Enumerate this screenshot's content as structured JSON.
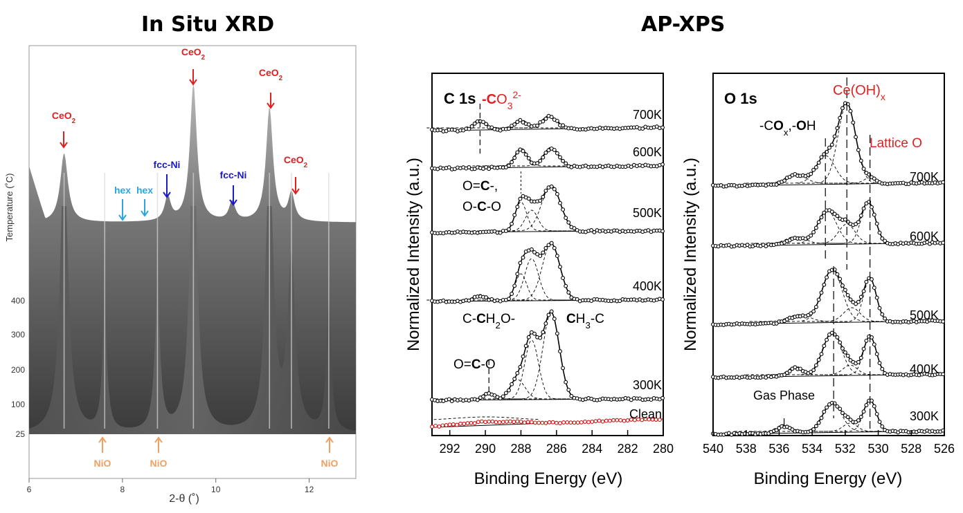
{
  "titles": {
    "xrd": "In Situ XRD",
    "xps": "AP-XPS"
  },
  "chart_data": [
    {
      "type": "area",
      "panel": "xrd",
      "xlabel": "2-θ (˚)",
      "ylabel": "Temperature (˚C)",
      "xlim": [
        6,
        13
      ],
      "xticks": [
        6,
        8,
        10,
        12
      ],
      "yticks": [
        "25",
        "100",
        "200",
        "300",
        "400"
      ],
      "top_peaks": [
        6.75,
        8.97,
        9.52,
        10.35,
        11.15,
        11.62
      ],
      "nio_peaks": [
        7.62,
        8.75,
        12.42
      ],
      "annotations": {
        "ceo2": "CeO",
        "ceo2_sub": "2",
        "fcc_ni": "fcc-Ni",
        "hex": "hex",
        "nio": "NiO"
      },
      "colors": {
        "ceo2": "#e02020",
        "fcc_ni": "#1a1acc",
        "hex": "#2aa6e0",
        "nio": "#f0a060"
      }
    },
    {
      "type": "line",
      "panel": "c1s",
      "title": "C 1s",
      "xlabel": "Binding Energy (eV)",
      "ylabel": "Normalized Intensity (a.u.)",
      "xlim": [
        293,
        280
      ],
      "xticks": [
        292,
        290,
        288,
        286,
        284,
        282,
        280
      ],
      "temperatures": [
        "700K",
        "600K",
        "500K",
        "400K",
        "300K",
        "Clean"
      ],
      "annotations": {
        "co3_a": "-",
        "co3_b": "C",
        "co3_c": "O",
        "co3_sub": "3",
        "co3_sup": "2-",
        "oc_a": "O=",
        "oc_b": "C",
        "oc_c": "-,",
        "oco_a": "O-",
        "oco_b": "C",
        "oco_c": "-O",
        "ch2o_a": "C-",
        "ch2o_b": "C",
        "ch2o_c": "H",
        "ch2o_sub": "2",
        "ch2o_d": "O-",
        "ch3_a": "C",
        "ch3_b": "H",
        "ch3_sub": "3",
        "ch3_c": "-C",
        "oco2_a": "O=",
        "oco2_b": "C",
        "oco2_c": "-O"
      },
      "peaks_eV": [
        290.3,
        288.0,
        287.4,
        286.3
      ]
    },
    {
      "type": "line",
      "panel": "o1s",
      "title": "O 1s",
      "xlabel": "Binding Energy (eV)",
      "ylabel": "Normalized Intensity (a.u.)",
      "xlim": [
        540,
        526
      ],
      "xticks": [
        540,
        538,
        536,
        534,
        532,
        530,
        528,
        526
      ],
      "temperatures": [
        "700K",
        "600K",
        "500K",
        "400K",
        "300K"
      ],
      "annotations": {
        "ceoh_a": "Ce(OH)",
        "ceoh_sub": "x",
        "cox_a": "-C",
        "cox_b": "O",
        "cox_sub": "x",
        "cox_c": ",-",
        "cox_d": "O",
        "cox_e": "H",
        "lattice": "Lattice O",
        "gas": "Gas Phase"
      },
      "peaks_eV": [
        535.7,
        532.7,
        531.9,
        530.5
      ],
      "colors": {
        "red_label": "#e02020"
      }
    }
  ]
}
